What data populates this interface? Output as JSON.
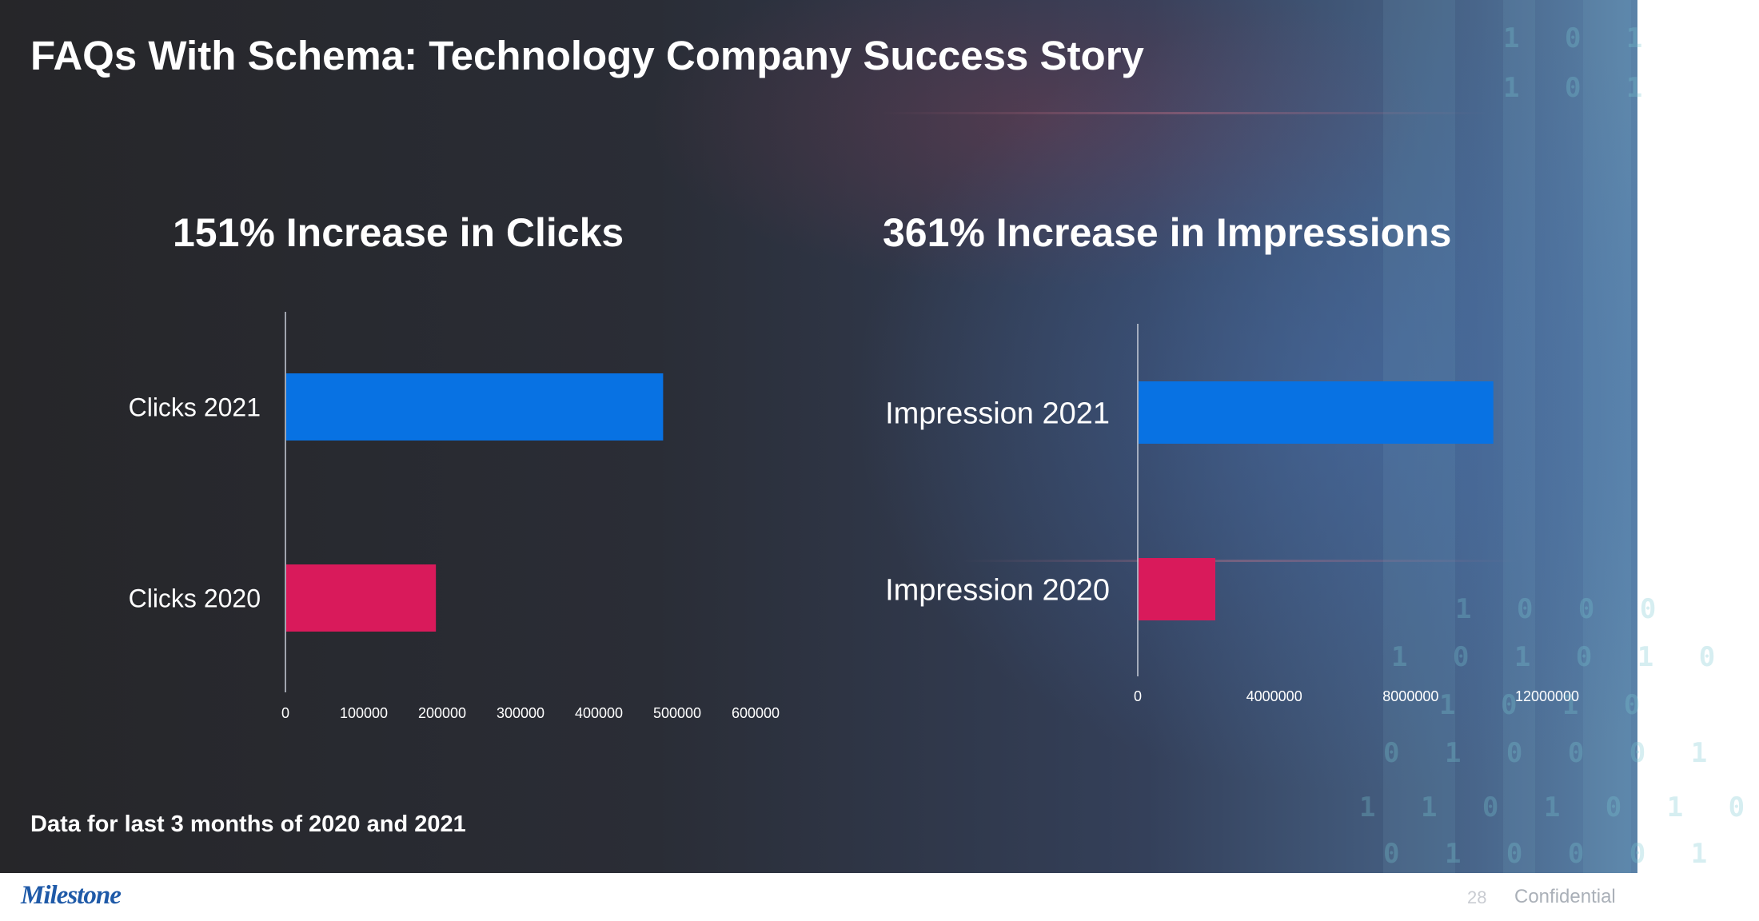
{
  "slide": {
    "title": "FAQs With Schema: Technology Company Success Story",
    "footnote": "Data for last 3 months of 2020 and 2021"
  },
  "footer": {
    "logo_text": "Milestone",
    "page_number": "28",
    "confidential_label": "Confidential"
  },
  "background_digits": [
    "1 0 1",
    "1 0 1",
    "1 0 0 0",
    "1 0 1 0 1 0",
    "1 0 1 0",
    "0 1 0 0 0 1",
    "1 1 0 1 0 1 0",
    "0 1 0 0 0 1"
  ],
  "colors": {
    "bar_2021": "#0872e3",
    "bar_2020": "#d91a5b",
    "axis": "#c8cdd8",
    "label_text": "#ffffff"
  },
  "chart_data": [
    {
      "type": "bar",
      "orientation": "horizontal",
      "title": "151% Increase in Clicks",
      "categories": [
        "Clicks 2021",
        "Clicks 2020"
      ],
      "values": [
        481000,
        191000
      ],
      "xlim": [
        0,
        600000
      ],
      "ticks": [
        0,
        100000,
        200000,
        300000,
        400000,
        500000,
        600000
      ],
      "tick_labels": [
        "0",
        "100000",
        "200000",
        "300000",
        "400000",
        "500000",
        "600000"
      ]
    },
    {
      "type": "bar",
      "orientation": "horizontal",
      "title": "361% Increase in Impressions",
      "categories": [
        "Impression 2021",
        "Impression 2020"
      ],
      "values": [
        10400000,
        2250000
      ],
      "xlim": [
        0,
        12000000
      ],
      "ticks": [
        0,
        4000000,
        8000000,
        12000000
      ],
      "tick_labels": [
        "0",
        "4000000",
        "8000000",
        "12000000"
      ]
    }
  ]
}
